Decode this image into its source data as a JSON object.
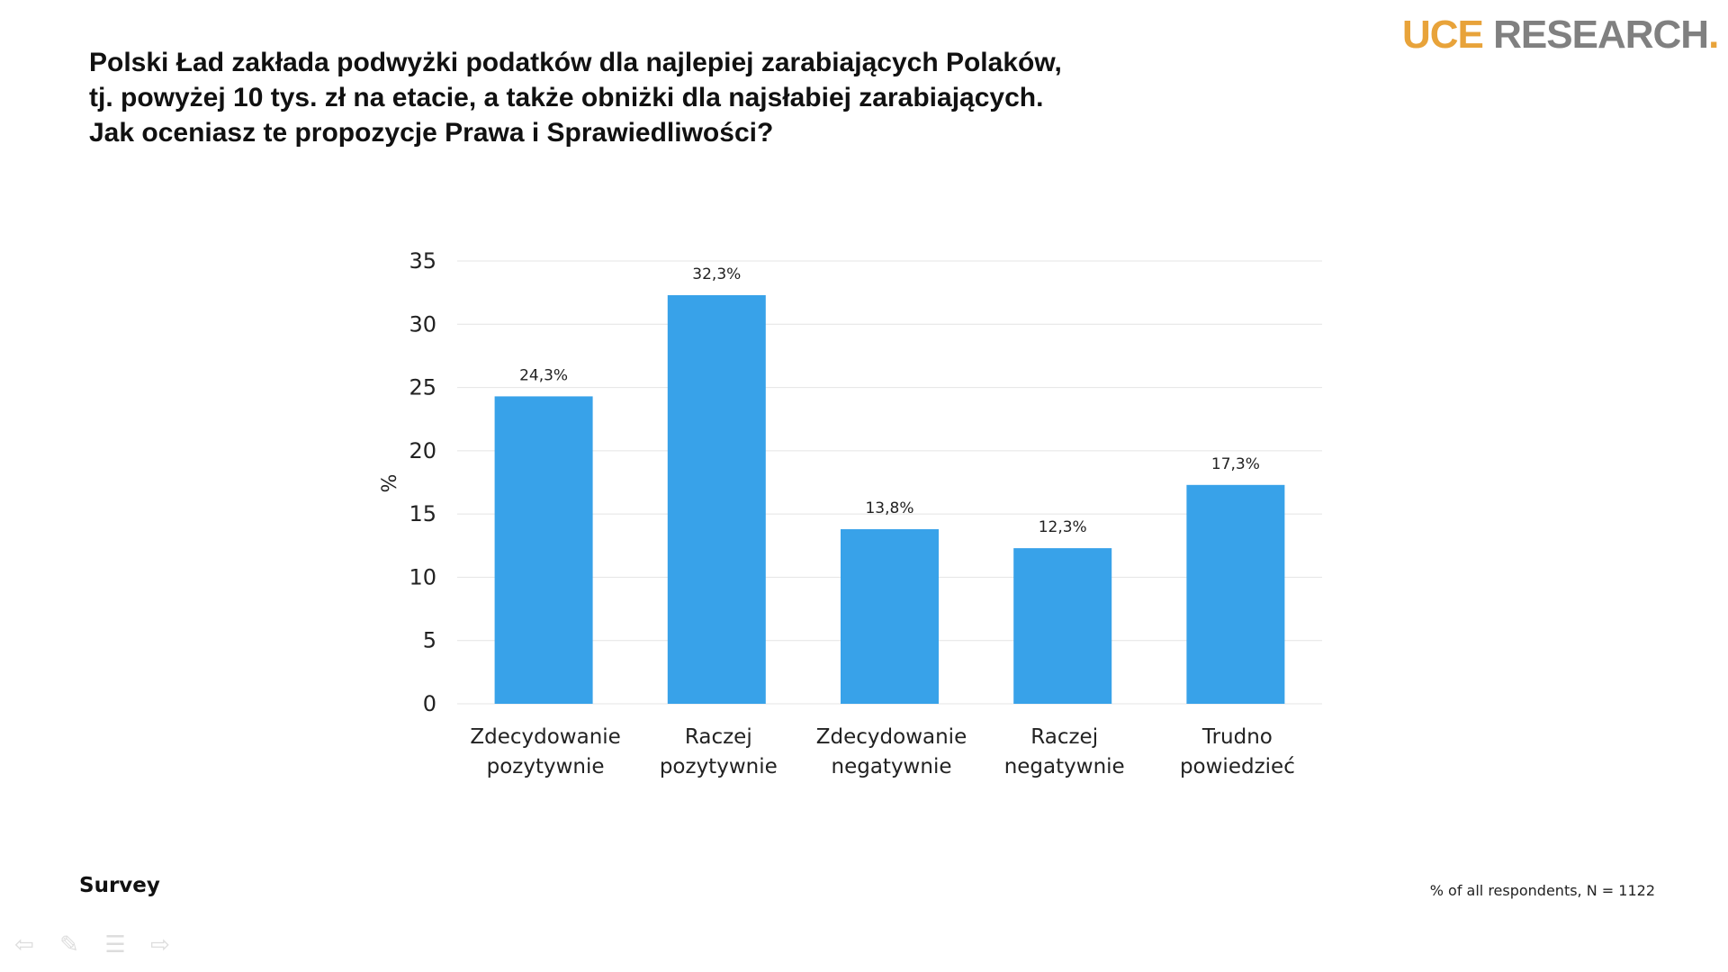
{
  "title_lines": [
    "Polski Ład zakłada podwyżki podatków dla najlepiej zarabiających Polaków,",
    "tj. powyżej 10 tys. zł na etacie, a także obniżki dla najsłabiej zarabiających.",
    "Jak oceniasz te propozycje Prawa i Sprawiedliwości?"
  ],
  "logo": {
    "part1": "UCE",
    "part2": "RESEARCH",
    "part3": "."
  },
  "footer": {
    "left": "Survey",
    "right": "% of all respondents, N = 1122"
  },
  "nav_icons": [
    "arrow-left-icon",
    "pen-icon",
    "menu-icon",
    "arrow-right-icon"
  ],
  "chart_data": {
    "type": "bar",
    "categories": [
      [
        "Zdecydowanie",
        "pozytywnie"
      ],
      [
        "Raczej",
        "pozytywnie"
      ],
      [
        "Zdecydowanie",
        "negatywnie"
      ],
      [
        "Raczej",
        "negatywnie"
      ],
      [
        "Trudno",
        "powiedzieć"
      ]
    ],
    "values": [
      24.3,
      32.3,
      13.8,
      12.3,
      17.3
    ],
    "data_labels": [
      "24,3%",
      "32,3%",
      "13,8%",
      "12,3%",
      "17,3%"
    ],
    "ylabel": "%",
    "ylim": [
      0,
      35
    ],
    "yticks": [
      0,
      5,
      10,
      15,
      20,
      25,
      30,
      35
    ],
    "grid": true,
    "color": "#38a2e9"
  }
}
